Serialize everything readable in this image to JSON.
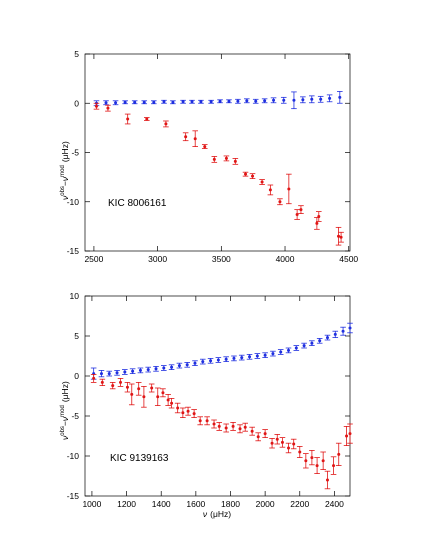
{
  "colors": {
    "blue": "#1f2fe0",
    "red": "#e01515",
    "axes": "#000000"
  },
  "chart_data": [
    {
      "type": "scatter",
      "title": "",
      "annotation": "KIC 8006161",
      "xlabel": "",
      "ylabel": {
        "main": "ν",
        "sup1": "obs",
        "mid": "−ν",
        "sup2": "mod",
        "unit": "(μHz)"
      },
      "xlim": [
        2430,
        4510
      ],
      "ylim": [
        -15,
        5
      ],
      "xticks": [
        2500,
        3000,
        3500,
        4000,
        4500
      ],
      "yticks": [
        5,
        0,
        -5,
        -10,
        -15
      ],
      "grid": false,
      "series": [
        {
          "color": "blue",
          "x": [
            2520,
            2595,
            2670,
            2745,
            2820,
            2895,
            2970,
            3050,
            3120,
            3200,
            3270,
            3340,
            3420,
            3490,
            3560,
            3630,
            3700,
            3770,
            3840,
            3910,
            3990,
            4070,
            4140,
            4210,
            4280,
            4350,
            4430
          ],
          "y": [
            0.0,
            0.05,
            0.05,
            0.1,
            0.1,
            0.1,
            0.1,
            0.15,
            0.1,
            0.15,
            0.15,
            0.15,
            0.15,
            0.2,
            0.2,
            0.2,
            0.25,
            0.2,
            0.25,
            0.3,
            0.3,
            0.3,
            0.35,
            0.4,
            0.4,
            0.5,
            0.6
          ],
          "err": [
            0.25,
            0.2,
            0.2,
            0.15,
            0.15,
            0.15,
            0.15,
            0.15,
            0.15,
            0.15,
            0.15,
            0.15,
            0.15,
            0.15,
            0.15,
            0.2,
            0.2,
            0.2,
            0.2,
            0.25,
            0.3,
            0.35,
            0.3,
            0.35,
            0.3,
            0.35,
            0.6
          ],
          "err_extra": {
            "index": 21,
            "err": 0.85
          }
        },
        {
          "color": "red",
          "x": [
            2520,
            2610,
            2765,
            2915,
            3065,
            3220,
            3295,
            3370,
            3445,
            3540,
            3610,
            3690,
            3745,
            3820,
            3885,
            3960,
            4030,
            4095,
            4125,
            4250,
            4265,
            4420,
            4440
          ],
          "y": [
            -0.3,
            -0.5,
            -1.6,
            -1.6,
            -2.1,
            -3.4,
            -3.6,
            -4.4,
            -5.7,
            -5.6,
            -5.9,
            -7.2,
            -7.4,
            -8.0,
            -8.8,
            -10.0,
            -8.7,
            -11.3,
            -10.8,
            -12.2,
            -11.5,
            -13.5,
            -13.6
          ],
          "err": [
            0.3,
            0.3,
            0.5,
            0.15,
            0.3,
            0.4,
            0.8,
            0.2,
            0.3,
            0.25,
            0.3,
            0.2,
            0.25,
            0.25,
            0.5,
            0.3,
            1.5,
            0.5,
            0.4,
            0.6,
            0.5,
            0.9,
            0.5
          ]
        }
      ]
    },
    {
      "type": "scatter",
      "title": "",
      "annotation": "KIC 9139163",
      "xlabel": {
        "main": "ν",
        "unit": "(μHz)"
      },
      "ylabel": {
        "main": "ν",
        "sup1": "obs",
        "mid": "−ν",
        "sup2": "mod",
        "unit": "(μHz)"
      },
      "xlim": [
        960,
        2490
      ],
      "ylim": [
        -15,
        10
      ],
      "xticks": [
        1000,
        1200,
        1400,
        1600,
        1800,
        2000,
        2200,
        2400
      ],
      "yticks": [
        10,
        5,
        0,
        -5,
        -10,
        -15
      ],
      "grid": false,
      "series": [
        {
          "color": "blue",
          "x": [
            1010,
            1055,
            1100,
            1145,
            1190,
            1235,
            1280,
            1325,
            1370,
            1415,
            1460,
            1505,
            1550,
            1595,
            1640,
            1685,
            1730,
            1775,
            1820,
            1865,
            1910,
            1955,
            2000,
            2045,
            2090,
            2135,
            2180,
            2225,
            2270,
            2315,
            2360,
            2405,
            2450,
            2490
          ],
          "y": [
            0.3,
            0.3,
            0.3,
            0.4,
            0.5,
            0.6,
            0.7,
            0.8,
            0.9,
            1.0,
            1.1,
            1.3,
            1.4,
            1.6,
            1.8,
            1.9,
            2.0,
            2.1,
            2.2,
            2.3,
            2.4,
            2.5,
            2.6,
            2.8,
            3.0,
            3.2,
            3.5,
            3.8,
            4.1,
            4.4,
            4.8,
            5.2,
            5.6,
            6.0
          ],
          "err": [
            0.7,
            0.4,
            0.3,
            0.3,
            0.3,
            0.3,
            0.3,
            0.3,
            0.3,
            0.3,
            0.3,
            0.3,
            0.3,
            0.3,
            0.3,
            0.3,
            0.3,
            0.3,
            0.3,
            0.3,
            0.3,
            0.3,
            0.3,
            0.3,
            0.3,
            0.3,
            0.3,
            0.3,
            0.3,
            0.3,
            0.3,
            0.4,
            0.5,
            0.6
          ]
        },
        {
          "color": "red",
          "x": [
            1010,
            1060,
            1120,
            1165,
            1205,
            1230,
            1270,
            1300,
            1345,
            1380,
            1410,
            1440,
            1460,
            1495,
            1525,
            1555,
            1590,
            1625,
            1665,
            1705,
            1735,
            1775,
            1815,
            1855,
            1885,
            1925,
            1960,
            2000,
            2040,
            2070,
            2100,
            2135,
            2165,
            2200,
            2235,
            2270,
            2300,
            2335,
            2360,
            2395,
            2425,
            2470,
            2490
          ],
          "y": [
            -0.3,
            -0.8,
            -1.2,
            -0.8,
            -1.4,
            -2.3,
            -1.6,
            -2.6,
            -1.5,
            -2.6,
            -2.1,
            -3.0,
            -3.4,
            -4.0,
            -4.6,
            -4.4,
            -4.7,
            -5.6,
            -5.6,
            -6.0,
            -6.3,
            -6.5,
            -6.3,
            -6.6,
            -6.4,
            -6.9,
            -7.6,
            -7.2,
            -8.4,
            -7.9,
            -8.3,
            -9.0,
            -8.5,
            -9.5,
            -10.6,
            -10.2,
            -11.2,
            -10.6,
            -13.0,
            -11.2,
            -9.8,
            -7.5,
            -7.2
          ],
          "err": [
            0.5,
            0.4,
            0.4,
            0.5,
            0.6,
            1.3,
            0.8,
            1.3,
            0.5,
            1.1,
            0.5,
            0.7,
            0.6,
            0.6,
            0.6,
            0.5,
            0.5,
            0.5,
            0.5,
            0.5,
            0.5,
            0.5,
            0.5,
            0.5,
            0.5,
            0.5,
            0.5,
            0.5,
            0.6,
            0.6,
            0.6,
            0.6,
            0.6,
            0.7,
            0.9,
            0.9,
            1.0,
            1.1,
            1.1,
            1.1,
            1.4,
            1.2,
            1.2
          ]
        }
      ]
    }
  ]
}
